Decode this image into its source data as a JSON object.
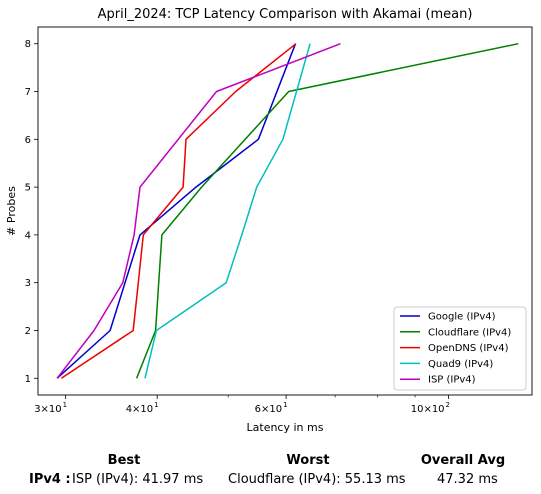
{
  "chart_data": {
    "type": "line",
    "title": "April_2024: TCP Latency Comparison with Akamai (mean)",
    "xlabel": "Latency in ms",
    "ylabel": "# Probes",
    "xscale": "log",
    "xlim": [
      27.5,
      130
    ],
    "ylim": [
      0.65,
      8.35
    ],
    "x_ticks": [
      {
        "value": 30,
        "base": "3",
        "exp": "1"
      },
      {
        "value": 40,
        "base": "4",
        "exp": "1"
      },
      {
        "value": 60,
        "base": "6",
        "exp": "1"
      },
      {
        "value": 100,
        "base": "10",
        "exp": "2"
      }
    ],
    "x_minor_ticks": [
      50,
      70,
      80,
      90
    ],
    "y_ticks": [
      1,
      2,
      3,
      4,
      5,
      6,
      7,
      8
    ],
    "grid": false,
    "legend_position": "lower right",
    "series": [
      {
        "name": "Google (IPv4)",
        "color": "#0000cc",
        "points": [
          [
            29.2,
            1
          ],
          [
            34.5,
            2
          ],
          [
            37.9,
            4
          ],
          [
            45.2,
            5
          ],
          [
            55.0,
            6
          ],
          [
            61.8,
            8
          ]
        ]
      },
      {
        "name": "Cloudflare (IPv4)",
        "color": "#008000",
        "points": [
          [
            37.5,
            1
          ],
          [
            39.8,
            2
          ],
          [
            40.2,
            3
          ],
          [
            40.6,
            4
          ],
          [
            46.0,
            5
          ],
          [
            60.5,
            7
          ],
          [
            124.5,
            8
          ]
        ]
      },
      {
        "name": "OpenDNS (IPv4)",
        "color": "#ee0000",
        "points": [
          [
            29.6,
            1
          ],
          [
            37.1,
            2
          ],
          [
            37.7,
            3
          ],
          [
            38.3,
            4
          ],
          [
            43.4,
            5
          ],
          [
            43.8,
            6
          ],
          [
            51.2,
            7
          ],
          [
            61.9,
            8
          ]
        ]
      },
      {
        "name": "Quad9 (IPv4)",
        "color": "#00bfbf",
        "points": [
          [
            38.5,
            1
          ],
          [
            39.9,
            2
          ],
          [
            49.7,
            3
          ],
          [
            52.2,
            4
          ],
          [
            54.7,
            5
          ],
          [
            59.4,
            6
          ],
          [
            62.0,
            7
          ],
          [
            64.7,
            8
          ]
        ]
      },
      {
        "name": "ISP (IPv4)",
        "color": "#bf00bf",
        "points": [
          [
            29.2,
            1
          ],
          [
            32.8,
            2
          ],
          [
            35.9,
            3
          ],
          [
            37.2,
            4
          ],
          [
            37.9,
            5
          ],
          [
            48.2,
            7
          ],
          [
            71.2,
            8
          ]
        ]
      }
    ]
  },
  "summary": {
    "headers": {
      "best": "Best",
      "worst": "Worst",
      "avg": "Overall Avg"
    },
    "row_label": "IPv4 :",
    "best": "ISP (IPv4): 41.97 ms",
    "worst": "Cloudflare (IPv4): 55.13 ms",
    "avg": "47.32 ms"
  }
}
